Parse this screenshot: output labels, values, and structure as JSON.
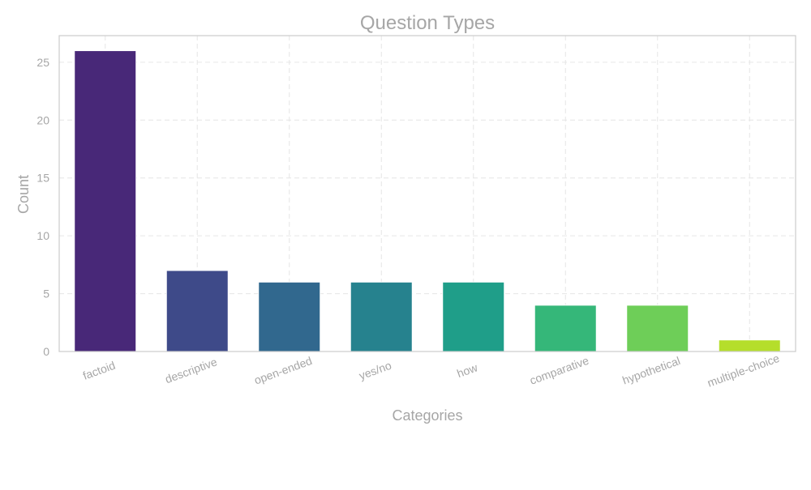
{
  "chart_data": {
    "type": "bar",
    "title": "Question Types",
    "xlabel": "Categories",
    "ylabel": "Count",
    "categories": [
      "factoid",
      "descriptive",
      "open-ended",
      "yes/no",
      "how",
      "comparative",
      "hypothetical",
      "multiple-choice"
    ],
    "values": [
      26,
      7,
      6,
      6,
      6,
      4,
      4,
      1
    ],
    "colors": [
      "#482878",
      "#3e4a89",
      "#31688e",
      "#26828e",
      "#1f9e89",
      "#35b779",
      "#6ece58",
      "#b5de2b"
    ],
    "ylim": [
      0,
      27.3
    ],
    "yticks": [
      0,
      5,
      10,
      15,
      20,
      25
    ],
    "grid": true
  }
}
